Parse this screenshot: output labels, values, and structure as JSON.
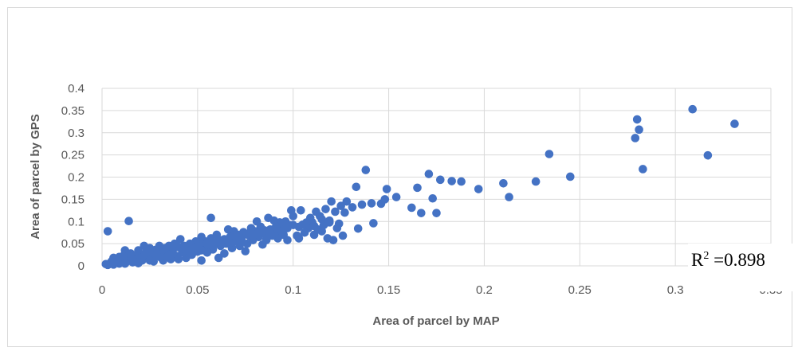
{
  "chart_data": {
    "type": "scatter",
    "xlabel": "Area of parcel by MAP",
    "ylabel": "Area of parcel by GPS",
    "xlim": [
      0,
      0.35
    ],
    "ylim": [
      0,
      0.4
    ],
    "x_ticks": [
      "0",
      "0.05",
      "0.1",
      "0.15",
      "0.2",
      "0.25",
      "0.3",
      "0.35"
    ],
    "y_ticks": [
      "0",
      "0.05",
      "0.1",
      "0.15",
      "0.2",
      "0.25",
      "0.3",
      "0.35",
      "0.4"
    ],
    "grid": true,
    "marker_color": "#4472c4",
    "annotation": {
      "base": "R",
      "sup": "2",
      "text": " =0.898"
    },
    "points": [
      [
        0.331,
        0.32
      ],
      [
        0.309,
        0.353
      ],
      [
        0.317,
        0.249
      ],
      [
        0.283,
        0.218
      ],
      [
        0.281,
        0.307
      ],
      [
        0.28,
        0.33
      ],
      [
        0.279,
        0.288
      ],
      [
        0.245,
        0.201
      ],
      [
        0.234,
        0.252
      ],
      [
        0.227,
        0.19
      ],
      [
        0.213,
        0.155
      ],
      [
        0.21,
        0.186
      ],
      [
        0.197,
        0.173
      ],
      [
        0.188,
        0.19
      ],
      [
        0.183,
        0.191
      ],
      [
        0.177,
        0.194
      ],
      [
        0.175,
        0.119
      ],
      [
        0.173,
        0.152
      ],
      [
        0.171,
        0.207
      ],
      [
        0.167,
        0.119
      ],
      [
        0.165,
        0.176
      ],
      [
        0.162,
        0.131
      ],
      [
        0.154,
        0.155
      ],
      [
        0.149,
        0.173
      ],
      [
        0.148,
        0.15
      ],
      [
        0.146,
        0.14
      ],
      [
        0.142,
        0.096
      ],
      [
        0.141,
        0.141
      ],
      [
        0.138,
        0.216
      ],
      [
        0.136,
        0.138
      ],
      [
        0.134,
        0.084
      ],
      [
        0.133,
        0.178
      ],
      [
        0.131,
        0.132
      ],
      [
        0.128,
        0.145
      ],
      [
        0.127,
        0.12
      ],
      [
        0.126,
        0.068
      ],
      [
        0.125,
        0.135
      ],
      [
        0.124,
        0.095
      ],
      [
        0.123,
        0.085
      ],
      [
        0.122,
        0.122
      ],
      [
        0.121,
        0.058
      ],
      [
        0.12,
        0.145
      ],
      [
        0.119,
        0.102
      ],
      [
        0.118,
        0.062
      ],
      [
        0.117,
        0.128
      ],
      [
        0.116,
        0.092
      ],
      [
        0.115,
        0.078
      ],
      [
        0.114,
        0.112
      ],
      [
        0.113,
        0.082
      ],
      [
        0.112,
        0.122
      ],
      [
        0.111,
        0.07
      ],
      [
        0.11,
        0.098
      ],
      [
        0.109,
        0.108
      ],
      [
        0.108,
        0.085
      ],
      [
        0.106,
        0.075
      ],
      [
        0.105,
        0.093
      ],
      [
        0.104,
        0.125
      ],
      [
        0.103,
        0.062
      ],
      [
        0.102,
        0.068
      ],
      [
        0.1,
        0.112
      ],
      [
        0.099,
        0.125
      ],
      [
        0.098,
        0.092
      ],
      [
        0.097,
        0.058
      ],
      [
        0.096,
        0.1
      ],
      [
        0.095,
        0.07
      ],
      [
        0.094,
        0.085
      ],
      [
        0.093,
        0.098
      ],
      [
        0.092,
        0.062
      ],
      [
        0.091,
        0.077
      ],
      [
        0.09,
        0.102
      ],
      [
        0.089,
        0.068
      ],
      [
        0.088,
        0.082
      ],
      [
        0.087,
        0.108
      ],
      [
        0.086,
        0.058
      ],
      [
        0.085,
        0.072
      ],
      [
        0.084,
        0.048
      ],
      [
        0.083,
        0.088
      ],
      [
        0.082,
        0.065
      ],
      [
        0.081,
        0.1
      ],
      [
        0.08,
        0.078
      ],
      [
        0.079,
        0.058
      ],
      [
        0.078,
        0.085
      ],
      [
        0.077,
        0.068
      ],
      [
        0.076,
        0.05
      ],
      [
        0.075,
        0.033
      ],
      [
        0.074,
        0.076
      ],
      [
        0.073,
        0.062
      ],
      [
        0.072,
        0.045
      ],
      [
        0.071,
        0.07
      ],
      [
        0.07,
        0.055
      ],
      [
        0.069,
        0.078
      ],
      [
        0.068,
        0.04
      ],
      [
        0.067,
        0.065
      ],
      [
        0.066,
        0.082
      ],
      [
        0.065,
        0.05
      ],
      [
        0.064,
        0.028
      ],
      [
        0.063,
        0.058
      ],
      [
        0.062,
        0.045
      ],
      [
        0.061,
        0.018
      ],
      [
        0.06,
        0.07
      ],
      [
        0.059,
        0.052
      ],
      [
        0.058,
        0.037
      ],
      [
        0.057,
        0.108
      ],
      [
        0.057,
        0.062
      ],
      [
        0.056,
        0.045
      ],
      [
        0.055,
        0.03
      ],
      [
        0.054,
        0.055
      ],
      [
        0.053,
        0.04
      ],
      [
        0.052,
        0.065
      ],
      [
        0.052,
        0.012
      ],
      [
        0.051,
        0.048
      ],
      [
        0.05,
        0.032
      ],
      [
        0.049,
        0.055
      ],
      [
        0.048,
        0.042
      ],
      [
        0.047,
        0.025
      ],
      [
        0.046,
        0.05
      ],
      [
        0.045,
        0.035
      ],
      [
        0.044,
        0.018
      ],
      [
        0.043,
        0.045
      ],
      [
        0.042,
        0.03
      ],
      [
        0.041,
        0.06
      ],
      [
        0.04,
        0.042
      ],
      [
        0.039,
        0.022
      ],
      [
        0.038,
        0.05
      ],
      [
        0.037,
        0.035
      ],
      [
        0.036,
        0.015
      ],
      [
        0.035,
        0.045
      ],
      [
        0.034,
        0.028
      ],
      [
        0.033,
        0.04
      ],
      [
        0.032,
        0.012
      ],
      [
        0.031,
        0.032
      ],
      [
        0.03,
        0.045
      ],
      [
        0.029,
        0.022
      ],
      [
        0.028,
        0.036
      ],
      [
        0.027,
        0.01
      ],
      [
        0.026,
        0.028
      ],
      [
        0.025,
        0.04
      ],
      [
        0.024,
        0.018
      ],
      [
        0.023,
        0.03
      ],
      [
        0.022,
        0.045
      ],
      [
        0.021,
        0.012
      ],
      [
        0.02,
        0.025
      ],
      [
        0.019,
        0.035
      ],
      [
        0.018,
        0.015
      ],
      [
        0.017,
        0.022
      ],
      [
        0.016,
        0.008
      ],
      [
        0.015,
        0.028
      ],
      [
        0.014,
        0.101
      ],
      [
        0.014,
        0.018
      ],
      [
        0.013,
        0.01
      ],
      [
        0.012,
        0.035
      ],
      [
        0.011,
        0.022
      ],
      [
        0.01,
        0.015
      ],
      [
        0.009,
        0.005
      ],
      [
        0.008,
        0.012
      ],
      [
        0.007,
        0.008
      ],
      [
        0.006,
        0.018
      ],
      [
        0.005,
        0.01
      ],
      [
        0.004,
        0.005
      ],
      [
        0.003,
        0.078
      ],
      [
        0.003,
        0.002
      ],
      [
        0.002,
        0.004
      ],
      [
        0.006,
        0.003
      ],
      [
        0.009,
        0.02
      ],
      [
        0.012,
        0.005
      ],
      [
        0.016,
        0.016
      ],
      [
        0.019,
        0.006
      ],
      [
        0.022,
        0.022
      ],
      [
        0.025,
        0.012
      ],
      [
        0.028,
        0.025
      ],
      [
        0.031,
        0.018
      ],
      [
        0.034,
        0.02
      ],
      [
        0.037,
        0.028
      ],
      [
        0.04,
        0.015
      ],
      [
        0.043,
        0.038
      ],
      [
        0.046,
        0.03
      ],
      [
        0.049,
        0.042
      ],
      [
        0.052,
        0.035
      ],
      [
        0.055,
        0.05
      ],
      [
        0.058,
        0.045
      ],
      [
        0.061,
        0.055
      ],
      [
        0.064,
        0.06
      ],
      [
        0.067,
        0.052
      ],
      [
        0.07,
        0.065
      ],
      [
        0.073,
        0.058
      ],
      [
        0.076,
        0.072
      ],
      [
        0.079,
        0.068
      ],
      [
        0.082,
        0.075
      ],
      [
        0.085,
        0.08
      ],
      [
        0.088,
        0.072
      ],
      [
        0.091,
        0.088
      ],
      [
        0.094,
        0.078
      ],
      [
        0.097,
        0.085
      ],
      [
        0.1,
        0.092
      ],
      [
        0.103,
        0.088
      ],
      [
        0.107,
        0.098
      ],
      [
        0.111,
        0.09
      ],
      [
        0.115,
        0.105
      ],
      [
        0.119,
        0.098
      ]
    ]
  }
}
